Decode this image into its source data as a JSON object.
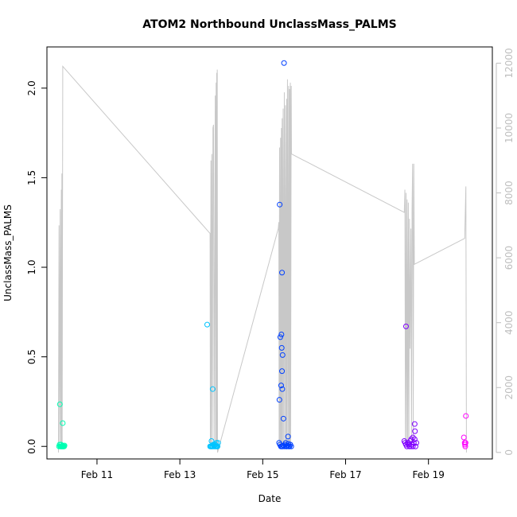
{
  "chart_data": {
    "type": "scatter",
    "title": "ATOM2 Northbound UnclassMass_PALMS",
    "xlabel": "Date",
    "ylabel": "UnclassMass_PALMS",
    "x_type": "date",
    "xlim": [
      "2017-02-09 19:00",
      "2017-02-20 13:00"
    ],
    "ylim": [
      -0.07,
      2.23
    ],
    "y2lim": [
      -200,
      12500
    ],
    "x_ticks": [
      {
        "date": "2017-02-11 00:00",
        "label": "Feb 11"
      },
      {
        "date": "2017-02-13 00:00",
        "label": "Feb 13"
      },
      {
        "date": "2017-02-15 00:00",
        "label": "Feb 15"
      },
      {
        "date": "2017-02-17 00:00",
        "label": "Feb 17"
      },
      {
        "date": "2017-02-19 00:00",
        "label": "Feb 19"
      }
    ],
    "y_ticks": [
      "0.0",
      "0.5",
      "1.0",
      "1.5",
      "2.0"
    ],
    "y2_ticks": [
      "0",
      "2000",
      "4000",
      "6000",
      "8000",
      "10000",
      "12000"
    ],
    "grid": false,
    "legend": "none",
    "colors": {
      "altitude_line": "#c8c8c8",
      "axes": "#000000",
      "right_axis": "#bebebe",
      "points": [
        "#00ffb3",
        "#00c4ff",
        "#0040ff",
        "#8000ff",
        "#ff00ff"
      ]
    },
    "altitude_line": {
      "axis": "right",
      "points": [
        [
          "2017-02-10 01:40",
          0
        ],
        [
          "2017-02-10 02:00",
          7000
        ],
        [
          "2017-02-10 02:20",
          300
        ],
        [
          "2017-02-10 02:40",
          7500
        ],
        [
          "2017-02-10 03:00",
          300
        ],
        [
          "2017-02-10 03:20",
          8100
        ],
        [
          "2017-02-10 03:30",
          200
        ],
        [
          "2017-02-10 03:40",
          8600
        ],
        [
          "2017-02-10 03:50",
          300
        ],
        [
          "2017-02-10 04:10",
          11900
        ],
        [
          "2017-02-13 17:30",
          6750
        ],
        [
          "2017-02-13 17:40",
          300
        ],
        [
          "2017-02-13 18:00",
          9000
        ],
        [
          "2017-02-13 18:10",
          300
        ],
        [
          "2017-02-13 18:30",
          9200
        ],
        [
          "2017-02-13 18:50",
          300
        ],
        [
          "2017-02-13 19:10",
          10000
        ],
        [
          "2017-02-13 19:30",
          10100
        ],
        [
          "2017-02-13 19:50",
          300
        ],
        [
          "2017-02-13 20:30",
          11000
        ],
        [
          "2017-02-13 20:40",
          300
        ],
        [
          "2017-02-13 21:00",
          11400
        ],
        [
          "2017-02-13 21:10",
          300
        ],
        [
          "2017-02-13 21:20",
          11700
        ],
        [
          "2017-02-13 21:30",
          200
        ],
        [
          "2017-02-13 21:40",
          11800
        ],
        [
          "2017-02-13 21:50",
          0
        ],
        [
          "2017-02-15 09:00",
          6900
        ],
        [
          "2017-02-15 09:20",
          7100
        ],
        [
          "2017-02-15 09:30",
          200
        ],
        [
          "2017-02-15 09:45",
          9400
        ],
        [
          "2017-02-15 10:00",
          200
        ],
        [
          "2017-02-15 10:20",
          9700
        ],
        [
          "2017-02-15 10:30",
          200
        ],
        [
          "2017-02-15 10:50",
          10000
        ],
        [
          "2017-02-15 11:00",
          200
        ],
        [
          "2017-02-15 11:15",
          10300
        ],
        [
          "2017-02-15 11:30",
          200
        ],
        [
          "2017-02-15 11:50",
          10600
        ],
        [
          "2017-02-15 12:10",
          200
        ],
        [
          "2017-02-15 12:30",
          11100
        ],
        [
          "2017-02-15 12:50",
          200
        ],
        [
          "2017-02-15 13:10",
          10700
        ],
        [
          "2017-02-15 13:30",
          200
        ],
        [
          "2017-02-15 13:50",
          10900
        ],
        [
          "2017-02-15 14:00",
          200
        ],
        [
          "2017-02-15 14:20",
          11500
        ],
        [
          "2017-02-15 14:40",
          200
        ],
        [
          "2017-02-15 15:00",
          11300
        ],
        [
          "2017-02-15 15:15",
          200
        ],
        [
          "2017-02-15 15:30",
          11200
        ],
        [
          "2017-02-15 15:40",
          200
        ],
        [
          "2017-02-15 16:00",
          11400
        ],
        [
          "2017-02-15 16:10",
          200
        ],
        [
          "2017-02-15 16:30",
          11300
        ],
        [
          "2017-02-15 16:40",
          9200
        ],
        [
          "2017-02-18 10:00",
          7400
        ],
        [
          "2017-02-18 10:20",
          8100
        ],
        [
          "2017-02-18 10:40",
          300
        ],
        [
          "2017-02-18 11:00",
          8000
        ],
        [
          "2017-02-18 11:20",
          300
        ],
        [
          "2017-02-18 11:40",
          7800
        ],
        [
          "2017-02-18 12:00",
          300
        ],
        [
          "2017-02-18 12:20",
          7700
        ],
        [
          "2017-02-18 12:40",
          300
        ],
        [
          "2017-02-18 13:00",
          7200
        ],
        [
          "2017-02-18 13:20",
          3200
        ],
        [
          "2017-02-18 13:50",
          6900
        ],
        [
          "2017-02-18 14:10",
          300
        ],
        [
          "2017-02-18 14:30",
          7500
        ],
        [
          "2017-02-18 14:50",
          8900
        ],
        [
          "2017-02-18 15:10",
          300
        ],
        [
          "2017-02-18 15:30",
          8900
        ],
        [
          "2017-02-18 15:50",
          5800
        ],
        [
          "2017-02-19 21:00",
          6600
        ],
        [
          "2017-02-19 21:40",
          8200
        ],
        [
          "2017-02-19 22:00",
          0
        ]
      ]
    },
    "series": [
      {
        "color": "#00ffb3",
        "points": [
          [
            "2017-02-10 02:00",
            0.0
          ],
          [
            "2017-02-10 02:20",
            0.01
          ],
          [
            "2017-02-10 02:40",
            0.0
          ],
          [
            "2017-02-10 03:00",
            0.0
          ],
          [
            "2017-02-10 03:10",
            0.01
          ],
          [
            "2017-02-10 03:20",
            0.0
          ],
          [
            "2017-02-10 03:30",
            0.0
          ],
          [
            "2017-02-10 03:40",
            0.0
          ],
          [
            "2017-02-10 03:50",
            0.0
          ],
          [
            "2017-02-10 04:00",
            0.005
          ],
          [
            "2017-02-10 04:10",
            0.0
          ],
          [
            "2017-02-10 04:20",
            0.0
          ],
          [
            "2017-02-10 04:30",
            0.0
          ],
          [
            "2017-02-10 04:40",
            0.0
          ],
          [
            "2017-02-10 05:00",
            0.0
          ],
          [
            "2017-02-10 05:10",
            0.005
          ],
          [
            "2017-02-10 02:30",
            0.235
          ],
          [
            "2017-02-10 04:10",
            0.13
          ]
        ]
      },
      {
        "color": "#00c4ff",
        "points": [
          [
            "2017-02-13 17:30",
            0.0
          ],
          [
            "2017-02-13 18:00",
            0.0
          ],
          [
            "2017-02-13 18:10",
            0.0
          ],
          [
            "2017-02-13 18:20",
            0.03
          ],
          [
            "2017-02-13 18:40",
            0.0
          ],
          [
            "2017-02-13 19:00",
            0.0
          ],
          [
            "2017-02-13 19:20",
            0.01
          ],
          [
            "2017-02-13 19:40",
            0.0
          ],
          [
            "2017-02-13 20:00",
            0.0
          ],
          [
            "2017-02-13 20:20",
            0.01
          ],
          [
            "2017-02-13 20:40",
            0.0
          ],
          [
            "2017-02-13 21:00",
            0.0
          ],
          [
            "2017-02-13 21:10",
            0.02
          ],
          [
            "2017-02-13 21:30",
            0.0
          ],
          [
            "2017-02-13 21:50",
            0.0
          ],
          [
            "2017-02-13 22:10",
            0.02
          ],
          [
            "2017-02-13 20:30",
            0.01
          ],
          [
            "2017-02-13 19:50",
            0.005
          ],
          [
            "2017-02-13 15:50",
            0.68
          ],
          [
            "2017-02-13 19:00",
            0.32
          ]
        ]
      },
      {
        "color": "#0040ff",
        "points": [
          [
            "2017-02-15 09:30",
            0.02
          ],
          [
            "2017-02-15 10:00",
            0.01
          ],
          [
            "2017-02-15 10:30",
            0.0
          ],
          [
            "2017-02-15 11:00",
            0.0
          ],
          [
            "2017-02-15 11:30",
            0.0
          ],
          [
            "2017-02-15 12:00",
            0.005
          ],
          [
            "2017-02-15 12:30",
            0.0
          ],
          [
            "2017-02-15 13:00",
            0.01
          ],
          [
            "2017-02-15 13:30",
            0.0
          ],
          [
            "2017-02-15 14:00",
            0.0
          ],
          [
            "2017-02-15 14:30",
            0.005
          ],
          [
            "2017-02-15 15:00",
            0.0
          ],
          [
            "2017-02-15 15:30",
            0.0
          ],
          [
            "2017-02-15 16:00",
            0.01
          ],
          [
            "2017-02-15 16:30",
            0.0
          ],
          [
            "2017-02-15 09:50",
            1.35
          ],
          [
            "2017-02-15 11:10",
            0.97
          ],
          [
            "2017-02-15 10:10",
            0.61
          ],
          [
            "2017-02-15 10:50",
            0.625
          ],
          [
            "2017-02-15 11:00",
            0.55
          ],
          [
            "2017-02-15 11:30",
            0.51
          ],
          [
            "2017-02-15 11:10",
            0.42
          ],
          [
            "2017-02-15 10:40",
            0.34
          ],
          [
            "2017-02-15 11:20",
            0.32
          ],
          [
            "2017-02-15 09:40",
            0.26
          ],
          [
            "2017-02-15 12:00",
            0.155
          ],
          [
            "2017-02-15 14:40",
            0.055
          ],
          [
            "2017-02-15 12:20",
            2.14
          ],
          [
            "2017-02-15 13:20",
            0.02
          ],
          [
            "2017-02-15 14:50",
            0.015
          ]
        ]
      },
      {
        "color": "#8000ff",
        "points": [
          [
            "2017-02-18 10:00",
            0.03
          ],
          [
            "2017-02-18 10:30",
            0.02
          ],
          [
            "2017-02-18 11:00",
            0.01
          ],
          [
            "2017-02-18 11:30",
            0.0
          ],
          [
            "2017-02-18 12:00",
            0.02
          ],
          [
            "2017-02-18 12:30",
            0.01
          ],
          [
            "2017-02-18 13:00",
            0.0
          ],
          [
            "2017-02-18 13:30",
            0.03
          ],
          [
            "2017-02-18 14:00",
            0.0
          ],
          [
            "2017-02-18 14:30",
            0.01
          ],
          [
            "2017-02-18 15:00",
            0.0
          ],
          [
            "2017-02-18 15:30",
            0.02
          ],
          [
            "2017-02-18 16:00",
            0.04
          ],
          [
            "2017-02-18 16:30",
            0.0
          ],
          [
            "2017-02-18 17:00",
            0.02
          ],
          [
            "2017-02-18 11:00",
            0.67
          ],
          [
            "2017-02-18 16:00",
            0.125
          ],
          [
            "2017-02-18 16:10",
            0.085
          ],
          [
            "2017-02-18 15:00",
            0.05
          ],
          [
            "2017-02-18 14:00",
            0.04
          ]
        ]
      },
      {
        "color": "#ff00ff",
        "points": [
          [
            "2017-02-19 20:30",
            0.05
          ],
          [
            "2017-02-19 21:00",
            0.02
          ],
          [
            "2017-02-19 21:10",
            0.01
          ],
          [
            "2017-02-19 21:20",
            0.0
          ],
          [
            "2017-02-19 21:30",
            0.02
          ],
          [
            "2017-02-19 21:40",
            0.17
          ]
        ]
      }
    ]
  }
}
